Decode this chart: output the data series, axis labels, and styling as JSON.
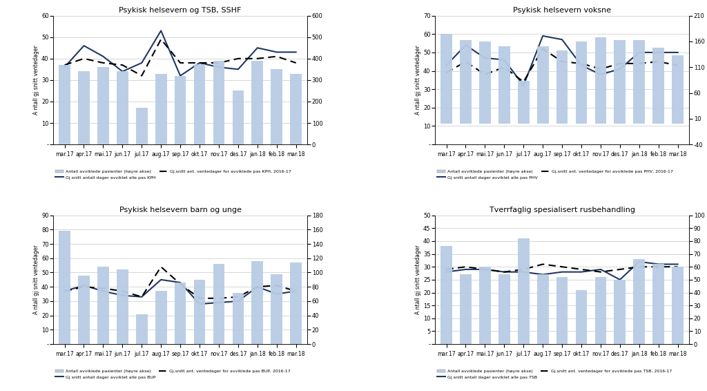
{
  "months": [
    "mar.17",
    "apr.17",
    "mai.17",
    "jun.17",
    "jul.17",
    "aug.17",
    "sep.17",
    "okt.17",
    "nov.17",
    "des.17",
    "jan.18",
    "feb.18",
    "mar.18"
  ],
  "plots": [
    {
      "title": "Psykisk helsevern og TSB, SSHF",
      "bars": [
        370,
        340,
        360,
        340,
        170,
        330,
        320,
        375,
        390,
        250,
        390,
        350,
        330
      ],
      "line_solid": [
        36,
        46,
        41,
        34,
        38,
        53,
        32,
        38,
        36,
        35,
        45,
        43,
        43
      ],
      "line_dashed": [
        37,
        40,
        38,
        37,
        32,
        49,
        38,
        38,
        38,
        40,
        40,
        41,
        38
      ],
      "ylim_left": [
        0,
        60
      ],
      "ylim_right": [
        0,
        600
      ],
      "yticks_left": [
        0,
        10,
        20,
        30,
        40,
        50,
        60
      ],
      "yticks_right": [
        0,
        100,
        200,
        300,
        400,
        500,
        600
      ],
      "legend_line": "Gj snitt antall dager avviklet alle pas KPH",
      "legend_dashed": "Gj.snitt ant. ventedager for avviklede pas KPH, 2016-17"
    },
    {
      "title": "Psykisk helsevern voksne",
      "bars": [
        175,
        163,
        160,
        150,
        83,
        150,
        143,
        160,
        168,
        163,
        163,
        148,
        133
      ],
      "line_solid": [
        43,
        54,
        47,
        46,
        32,
        59,
        57,
        43,
        38,
        41,
        50,
        50,
        50
      ],
      "line_dashed": [
        39,
        45,
        38,
        42,
        34,
        52,
        45,
        44,
        41,
        44,
        44,
        45,
        43
      ],
      "ylim_left": [
        0,
        70
      ],
      "ylim_right": [
        -40,
        210
      ],
      "yticks_left": [
        0,
        10,
        20,
        30,
        40,
        50,
        60,
        70
      ],
      "yticks_right": [
        -40,
        10,
        60,
        110,
        160,
        210
      ],
      "legend_line": "Gj snitt antall dager avviklet alle pas PHV",
      "legend_dashed": "Gj.snitt ant. ventedager for avviklede pas PHV, 2016-17"
    },
    {
      "title": "Psykisk helsevern barn og unge",
      "bars": [
        158,
        96,
        108,
        104,
        42,
        74,
        86,
        90,
        112,
        72,
        116,
        98,
        114
      ],
      "line_solid": [
        37,
        41,
        37,
        34,
        33,
        45,
        43,
        28,
        29,
        30,
        40,
        35,
        37
      ],
      "line_dashed": [
        37,
        40,
        39,
        37,
        33,
        54,
        42,
        32,
        32,
        33,
        40,
        41,
        37
      ],
      "ylim_left": [
        0,
        90
      ],
      "ylim_right": [
        0,
        180
      ],
      "yticks_left": [
        0,
        10,
        20,
        30,
        40,
        50,
        60,
        70,
        80,
        90
      ],
      "yticks_right": [
        0,
        20,
        40,
        60,
        80,
        100,
        120,
        140,
        160,
        180
      ],
      "legend_line": "Gj snitt antall dager avviklet alle pas BUP",
      "legend_dashed": "Gj.snitt ant. ventedager for avviklede pas BUP, 2016-17"
    },
    {
      "title": "Tverrfaglig spesialisert rusbehandling",
      "bars": [
        76,
        54,
        60,
        54,
        82,
        54,
        52,
        42,
        52,
        50,
        66,
        62,
        60
      ],
      "line_solid": [
        28,
        29,
        29,
        28,
        28,
        27,
        28,
        28,
        29,
        25,
        32,
        31,
        31
      ],
      "line_dashed": [
        29,
        30,
        29,
        28,
        29,
        31,
        30,
        29,
        28,
        29,
        30,
        30,
        30
      ],
      "ylim_left": [
        0,
        50
      ],
      "ylim_right": [
        0,
        100
      ],
      "yticks_left": [
        0,
        5,
        10,
        15,
        20,
        25,
        30,
        35,
        40,
        45,
        50
      ],
      "yticks_right": [
        0,
        10,
        20,
        30,
        40,
        50,
        60,
        70,
        80,
        90,
        100
      ],
      "legend_line": "Gj snitt antall dager avviklet alle pas TSB",
      "legend_dashed": "Gj.snitt ant. ventedager for avviklede pas TSB, 2016-17"
    }
  ],
  "bar_color": "#b8cce4",
  "line_color": "#1f3864",
  "dashed_color": "#000000",
  "ylabel": "A ntall gj snitt ventedager",
  "legend_bar": "Antall avviklede pasienter (høyre akse)",
  "bg_color": "#ffffff",
  "grid_color": "#c8c8c8"
}
